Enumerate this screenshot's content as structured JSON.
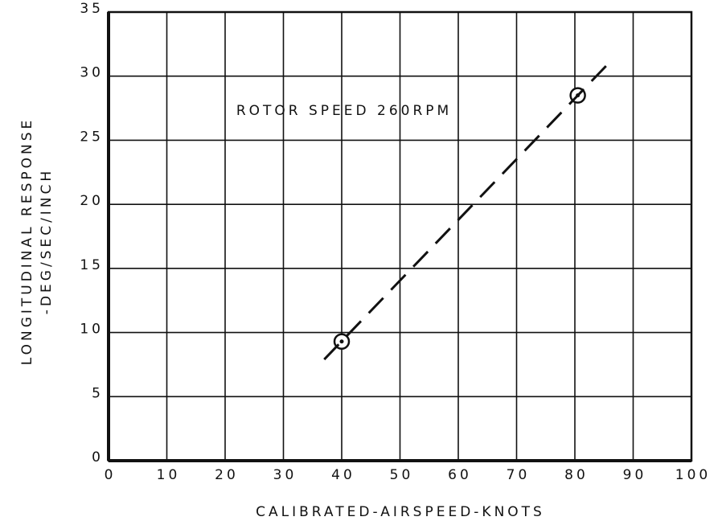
{
  "chart_data": {
    "type": "scatter",
    "xlabel": "CALIBRATED-AIRSPEED-KNOTS",
    "ylabel": [
      "LONGITUDINAL RESPONSE",
      "-DEG/SEC/INCH"
    ],
    "annotation": "ROTOR SPEED 260RPM",
    "xlim": [
      0,
      100
    ],
    "xticks": [
      0,
      10,
      20,
      30,
      40,
      50,
      60,
      70,
      80,
      90,
      100
    ],
    "ylim": [
      0,
      35
    ],
    "yticks": [
      0,
      5,
      10,
      15,
      20,
      25,
      30,
      35
    ],
    "grid": true,
    "series": [
      {
        "color": "#111111",
        "marker": "circle-dot",
        "x": [
          40,
          80.5
        ],
        "values": [
          9.3,
          28.5
        ]
      },
      {
        "color": "#111111",
        "line": "dashed",
        "x": [
          37,
          86
        ],
        "values": [
          7.9,
          31.1
        ]
      }
    ]
  }
}
